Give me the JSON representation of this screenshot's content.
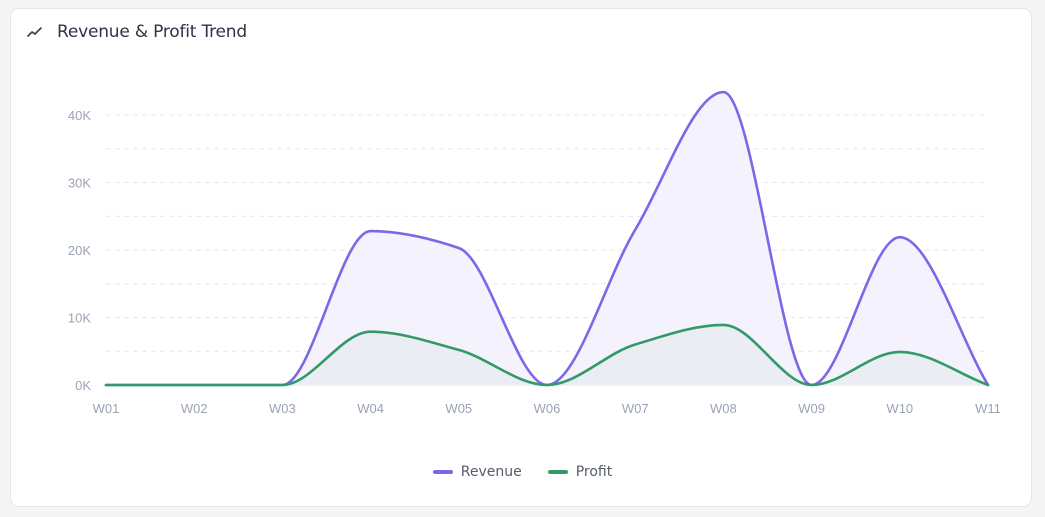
{
  "card": {
    "title": "Revenue & Profit Trend",
    "icon": "trend-line-icon"
  },
  "chart_data": {
    "type": "area",
    "title": "Revenue & Profit Trend",
    "xlabel": "",
    "ylabel": "",
    "categories": [
      "W01",
      "W02",
      "W03",
      "W04",
      "W05",
      "W06",
      "W07",
      "W08",
      "W09",
      "W10",
      "W11"
    ],
    "series": [
      {
        "name": "Revenue",
        "color": "#7b68e6",
        "fill": "#f3f1fd",
        "values": [
          0,
          0,
          0,
          22800,
          20300,
          0,
          23000,
          43400,
          0,
          21900,
          0
        ]
      },
      {
        "name": "Profit",
        "color": "#339966",
        "fill": "#e9ecf3",
        "values": [
          0,
          0,
          0,
          7900,
          5200,
          0,
          6000,
          8900,
          0,
          4900,
          0
        ]
      }
    ],
    "yticks": [
      "0K",
      "10K",
      "20K",
      "30K",
      "40K"
    ],
    "ylim": [
      0,
      40000
    ],
    "grid": true,
    "grid_step": 5000,
    "legend_position": "bottom",
    "curve": "smooth"
  },
  "legend": {
    "items": [
      {
        "label": "Revenue",
        "color": "#7b68e6"
      },
      {
        "label": "Profit",
        "color": "#339966"
      }
    ]
  }
}
